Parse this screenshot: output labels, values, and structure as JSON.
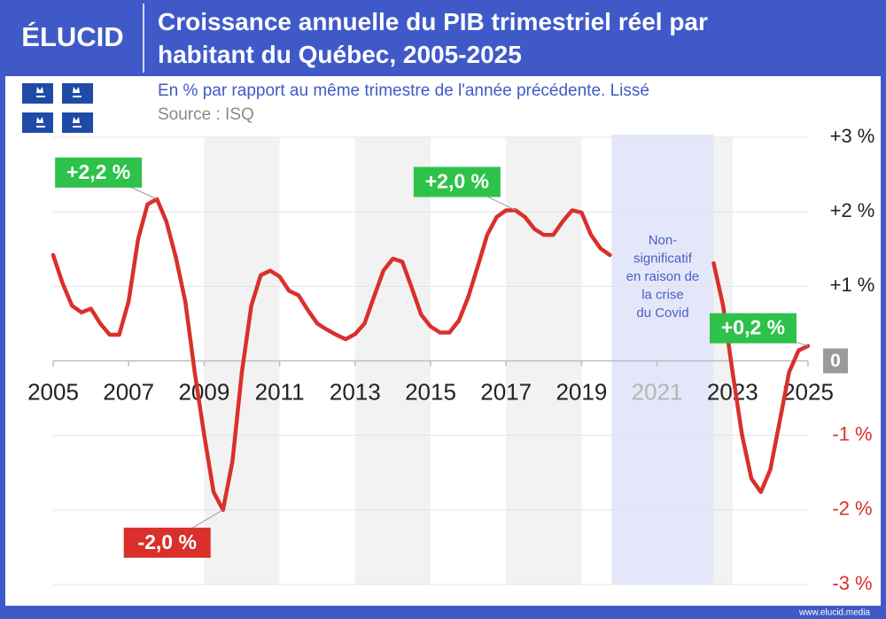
{
  "brand": "ÉLUCID",
  "footer": "www.elucid.media",
  "chart_data": {
    "type": "line",
    "title": "Croissance annuelle du PIB trimestriel réel par habitant du Québec, 2005-2025",
    "subtitle": "En % par rapport au même trimestre de l'année précédente. Lissé",
    "source": "Source : ISQ",
    "color": "#d9302c",
    "positive_label_color": "#2ec24a",
    "negative_label_color": "#d9302c",
    "x": [
      2005,
      2005.25,
      2005.5,
      2005.75,
      2006,
      2006.25,
      2006.5,
      2006.75,
      2007,
      2007.25,
      2007.5,
      2007.75,
      2008,
      2008.25,
      2008.5,
      2008.75,
      2009,
      2009.25,
      2009.5,
      2009.75,
      2010,
      2010.25,
      2010.5,
      2010.75,
      2011,
      2011.25,
      2011.5,
      2011.75,
      2012,
      2012.25,
      2012.5,
      2012.75,
      2013,
      2013.25,
      2013.5,
      2013.75,
      2014,
      2014.25,
      2014.5,
      2014.75,
      2015,
      2015.25,
      2015.5,
      2015.75,
      2016,
      2016.25,
      2016.5,
      2016.75,
      2017,
      2017.25,
      2017.5,
      2017.75,
      2018,
      2018.25,
      2018.5,
      2018.75,
      2019,
      2019.25,
      2019.5,
      2019.75,
      2020,
      2020.25,
      2020.5,
      2020.75,
      2021,
      2021.25,
      2021.5,
      2021.75,
      2022,
      2022.25,
      2022.5,
      2022.75,
      2023,
      2023.25,
      2023.5,
      2023.75,
      2024,
      2024.25,
      2024.5,
      2024.75,
      2025
    ],
    "values": [
      1.42,
      1.04,
      0.74,
      0.65,
      0.7,
      0.5,
      0.35,
      0.35,
      0.8,
      1.63,
      2.1,
      2.17,
      1.87,
      1.39,
      0.8,
      -0.15,
      -0.99,
      -1.76,
      -2.0,
      -1.35,
      -0.15,
      0.74,
      1.15,
      1.21,
      1.13,
      0.94,
      0.88,
      0.68,
      0.5,
      0.42,
      0.35,
      0.29,
      0.36,
      0.5,
      0.86,
      1.21,
      1.37,
      1.33,
      0.98,
      0.62,
      0.46,
      0.38,
      0.38,
      0.54,
      0.86,
      1.27,
      1.69,
      1.93,
      2.02,
      2.02,
      1.93,
      1.77,
      1.69,
      1.69,
      1.87,
      2.02,
      1.99,
      1.69,
      1.51,
      1.42,
      null,
      null,
      null,
      null,
      null,
      null,
      null,
      null,
      null,
      null,
      1.31,
      0.74,
      -0.15,
      -0.99,
      -1.58,
      -1.76,
      -1.46,
      -0.81,
      -0.15,
      0.14,
      0.2
    ],
    "value_labels": [
      null,
      null,
      null,
      null,
      null,
      null,
      null,
      null,
      null,
      null,
      null,
      "+2,2 %",
      null,
      null,
      null,
      null,
      null,
      null,
      "-2,0 %",
      null,
      null,
      null,
      null,
      null,
      null,
      null,
      null,
      null,
      null,
      null,
      null,
      null,
      null,
      null,
      null,
      null,
      null,
      null,
      null,
      null,
      null,
      null,
      null,
      null,
      null,
      null,
      null,
      null,
      null,
      "+2,0 %",
      null,
      null,
      null,
      null,
      null,
      null,
      null,
      null,
      null,
      null,
      null,
      null,
      null,
      null,
      null,
      null,
      null,
      null,
      null,
      null,
      null,
      null,
      null,
      null,
      null,
      null,
      null,
      null,
      null,
      null,
      "+0,2 %"
    ],
    "shade": {
      "from": 2019.8,
      "to": 2022.5,
      "lines": [
        "Non-",
        "significatif",
        "en raison de",
        "la crise",
        "du Covid"
      ]
    },
    "xlim": [
      2005,
      2025
    ],
    "xticks": [
      2005,
      2007,
      2009,
      2011,
      2013,
      2015,
      2017,
      2019,
      2021,
      2023,
      2025
    ],
    "ylim": [
      -3,
      3
    ],
    "yticks": [
      {
        "value": 3,
        "label": "+3 %"
      },
      {
        "value": 2,
        "label": "+2 %"
      },
      {
        "value": 1,
        "label": "+1 %"
      },
      0,
      {
        "value": -1,
        "label": "-1 %"
      },
      {
        "value": -2,
        "label": "-2 %"
      },
      {
        "value": -3,
        "label": "-3 %"
      }
    ],
    "grid": true
  }
}
